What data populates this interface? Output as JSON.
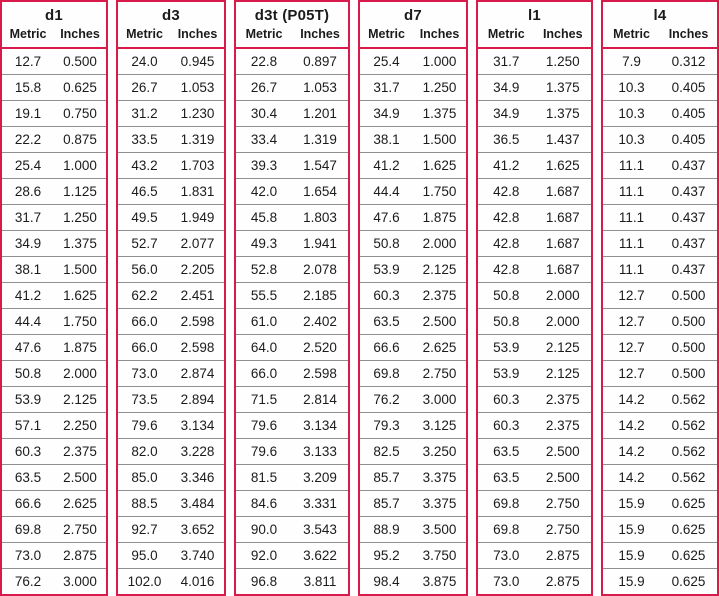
{
  "chart_data": {
    "type": "table",
    "column_groups": [
      {
        "title": "d1",
        "headers": [
          "Metric",
          "Inches"
        ],
        "rows": [
          [
            "12.7",
            "0.500"
          ],
          [
            "15.8",
            "0.625"
          ],
          [
            "19.1",
            "0.750"
          ],
          [
            "22.2",
            "0.875"
          ],
          [
            "25.4",
            "1.000"
          ],
          [
            "28.6",
            "1.125"
          ],
          [
            "31.7",
            "1.250"
          ],
          [
            "34.9",
            "1.375"
          ],
          [
            "38.1",
            "1.500"
          ],
          [
            "41.2",
            "1.625"
          ],
          [
            "44.4",
            "1.750"
          ],
          [
            "47.6",
            "1.875"
          ],
          [
            "50.8",
            "2.000"
          ],
          [
            "53.9",
            "2.125"
          ],
          [
            "57.1",
            "2.250"
          ],
          [
            "60.3",
            "2.375"
          ],
          [
            "63.5",
            "2.500"
          ],
          [
            "66.6",
            "2.625"
          ],
          [
            "69.8",
            "2.750"
          ],
          [
            "73.0",
            "2.875"
          ],
          [
            "76.2",
            "3.000"
          ]
        ]
      },
      {
        "title": "d3",
        "headers": [
          "Metric",
          "Inches"
        ],
        "rows": [
          [
            "24.0",
            "0.945"
          ],
          [
            "26.7",
            "1.053"
          ],
          [
            "31.2",
            "1.230"
          ],
          [
            "33.5",
            "1.319"
          ],
          [
            "43.2",
            "1.703"
          ],
          [
            "46.5",
            "1.831"
          ],
          [
            "49.5",
            "1.949"
          ],
          [
            "52.7",
            "2.077"
          ],
          [
            "56.0",
            "2.205"
          ],
          [
            "62.2",
            "2.451"
          ],
          [
            "66.0",
            "2.598"
          ],
          [
            "66.0",
            "2.598"
          ],
          [
            "73.0",
            "2.874"
          ],
          [
            "73.5",
            "2.894"
          ],
          [
            "79.6",
            "3.134"
          ],
          [
            "82.0",
            "3.228"
          ],
          [
            "85.0",
            "3.346"
          ],
          [
            "88.5",
            "3.484"
          ],
          [
            "92.7",
            "3.652"
          ],
          [
            "95.0",
            "3.740"
          ],
          [
            "102.0",
            "4.016"
          ]
        ]
      },
      {
        "title": "d3t (P05T)",
        "headers": [
          "Metric",
          "Inches"
        ],
        "rows": [
          [
            "22.8",
            "0.897"
          ],
          [
            "26.7",
            "1.053"
          ],
          [
            "30.4",
            "1.201"
          ],
          [
            "33.4",
            "1.319"
          ],
          [
            "39.3",
            "1.547"
          ],
          [
            "42.0",
            "1.654"
          ],
          [
            "45.8",
            "1.803"
          ],
          [
            "49.3",
            "1.941"
          ],
          [
            "52.8",
            "2.078"
          ],
          [
            "55.5",
            "2.185"
          ],
          [
            "61.0",
            "2.402"
          ],
          [
            "64.0",
            "2.520"
          ],
          [
            "66.0",
            "2.598"
          ],
          [
            "71.5",
            "2.814"
          ],
          [
            "79.6",
            "3.134"
          ],
          [
            "79.6",
            "3.133"
          ],
          [
            "81.5",
            "3.209"
          ],
          [
            "84.6",
            "3.331"
          ],
          [
            "90.0",
            "3.543"
          ],
          [
            "92.0",
            "3.622"
          ],
          [
            "96.8",
            "3.811"
          ]
        ]
      },
      {
        "title": "d7",
        "headers": [
          "Metric",
          "Inches"
        ],
        "rows": [
          [
            "25.4",
            "1.000"
          ],
          [
            "31.7",
            "1.250"
          ],
          [
            "34.9",
            "1.375"
          ],
          [
            "38.1",
            "1.500"
          ],
          [
            "41.2",
            "1.625"
          ],
          [
            "44.4",
            "1.750"
          ],
          [
            "47.6",
            "1.875"
          ],
          [
            "50.8",
            "2.000"
          ],
          [
            "53.9",
            "2.125"
          ],
          [
            "60.3",
            "2.375"
          ],
          [
            "63.5",
            "2.500"
          ],
          [
            "66.6",
            "2.625"
          ],
          [
            "69.8",
            "2.750"
          ],
          [
            "76.2",
            "3.000"
          ],
          [
            "79.3",
            "3.125"
          ],
          [
            "82.5",
            "3.250"
          ],
          [
            "85.7",
            "3.375"
          ],
          [
            "85.7",
            "3.375"
          ],
          [
            "88.9",
            "3.500"
          ],
          [
            "95.2",
            "3.750"
          ],
          [
            "98.4",
            "3.875"
          ]
        ]
      },
      {
        "title": "l1",
        "headers": [
          "Metric",
          "Inches"
        ],
        "rows": [
          [
            "31.7",
            "1.250"
          ],
          [
            "34.9",
            "1.375"
          ],
          [
            "34.9",
            "1.375"
          ],
          [
            "36.5",
            "1.437"
          ],
          [
            "41.2",
            "1.625"
          ],
          [
            "42.8",
            "1.687"
          ],
          [
            "42.8",
            "1.687"
          ],
          [
            "42.8",
            "1.687"
          ],
          [
            "42.8",
            "1.687"
          ],
          [
            "50.8",
            "2.000"
          ],
          [
            "50.8",
            "2.000"
          ],
          [
            "53.9",
            "2.125"
          ],
          [
            "53.9",
            "2.125"
          ],
          [
            "60.3",
            "2.375"
          ],
          [
            "60.3",
            "2.375"
          ],
          [
            "63.5",
            "2.500"
          ],
          [
            "63.5",
            "2.500"
          ],
          [
            "69.8",
            "2.750"
          ],
          [
            "69.8",
            "2.750"
          ],
          [
            "73.0",
            "2.875"
          ],
          [
            "73.0",
            "2.875"
          ]
        ]
      },
      {
        "title": "l4",
        "headers": [
          "Metric",
          "Inches"
        ],
        "rows": [
          [
            "7.9",
            "0.312"
          ],
          [
            "10.3",
            "0.405"
          ],
          [
            "10.3",
            "0.405"
          ],
          [
            "10.3",
            "0.405"
          ],
          [
            "11.1",
            "0.437"
          ],
          [
            "11.1",
            "0.437"
          ],
          [
            "11.1",
            "0.437"
          ],
          [
            "11.1",
            "0.437"
          ],
          [
            "11.1",
            "0.437"
          ],
          [
            "12.7",
            "0.500"
          ],
          [
            "12.7",
            "0.500"
          ],
          [
            "12.7",
            "0.500"
          ],
          [
            "12.7",
            "0.500"
          ],
          [
            "14.2",
            "0.562"
          ],
          [
            "14.2",
            "0.562"
          ],
          [
            "14.2",
            "0.562"
          ],
          [
            "14.2",
            "0.562"
          ],
          [
            "15.9",
            "0.625"
          ],
          [
            "15.9",
            "0.625"
          ],
          [
            "15.9",
            "0.625"
          ],
          [
            "15.9",
            "0.625"
          ]
        ]
      }
    ]
  },
  "colors": {
    "accent_border": "#d81b4b",
    "row_divider": "#909090",
    "text": "#1b1b1b",
    "background": "#ffffff"
  }
}
